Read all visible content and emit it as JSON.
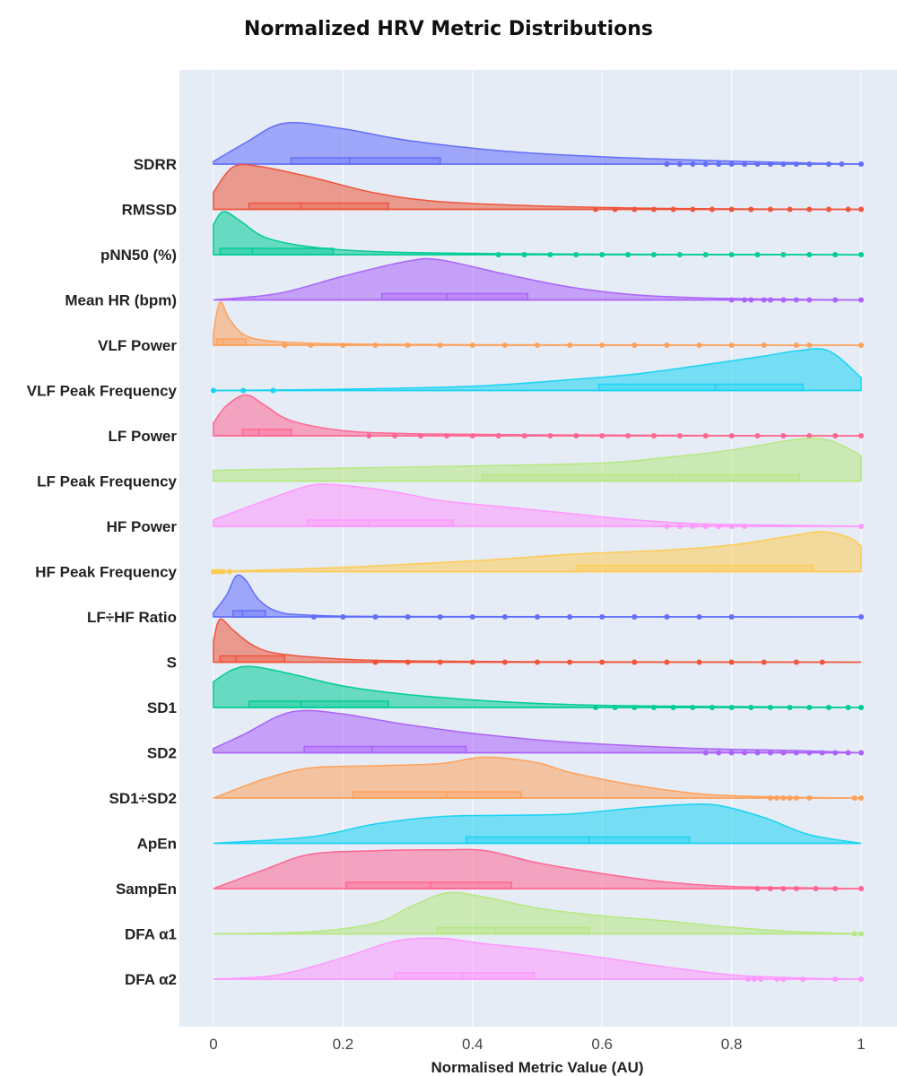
{
  "chart_data": {
    "type": "raincloud",
    "title": "Normalized HRV Metric Distributions",
    "xlabel": "Normalised Metric Value (AU)",
    "ylabel": "",
    "xlim": [
      0,
      1
    ],
    "xticks": [
      "0",
      "0.2",
      "0.4",
      "0.6",
      "0.8",
      "1"
    ],
    "grid": true,
    "background": "#E5ECF6",
    "series": [
      {
        "name": "SDRR",
        "color": "#636EFA",
        "shape": [
          [
            0,
            0.06
          ],
          [
            0.05,
            0.5
          ],
          [
            0.11,
            0.95
          ],
          [
            0.2,
            0.82
          ],
          [
            0.3,
            0.55
          ],
          [
            0.45,
            0.3
          ],
          [
            0.6,
            0.17
          ],
          [
            0.75,
            0.09
          ],
          [
            0.9,
            0.03
          ],
          [
            1,
            0.0
          ]
        ],
        "q1": 0.12,
        "median": 0.21,
        "q3": 0.35,
        "outliers": [
          0.7,
          0.72,
          0.74,
          0.76,
          0.78,
          0.8,
          0.82,
          0.84,
          0.86,
          0.88,
          0.9,
          0.92,
          0.95,
          0.97,
          1.0
        ]
      },
      {
        "name": "RMSSD",
        "color": "#EF553B",
        "shape": [
          [
            0,
            0.4
          ],
          [
            0.03,
            0.98
          ],
          [
            0.07,
            1.0
          ],
          [
            0.15,
            0.75
          ],
          [
            0.25,
            0.38
          ],
          [
            0.35,
            0.18
          ],
          [
            0.5,
            0.08
          ],
          [
            0.65,
            0.03
          ],
          [
            0.8,
            0.01
          ],
          [
            1,
            0.0
          ]
        ],
        "q1": 0.055,
        "median": 0.135,
        "q3": 0.27,
        "outliers": [
          0.59,
          0.62,
          0.65,
          0.68,
          0.71,
          0.74,
          0.77,
          0.8,
          0.83,
          0.86,
          0.89,
          0.92,
          0.95,
          0.98,
          1.0
        ]
      },
      {
        "name": "pNN50 (%)",
        "color": "#00CC96",
        "shape": [
          [
            0,
            0.7
          ],
          [
            0.015,
            1.0
          ],
          [
            0.04,
            0.8
          ],
          [
            0.08,
            0.4
          ],
          [
            0.15,
            0.18
          ],
          [
            0.25,
            0.07
          ],
          [
            0.4,
            0.03
          ],
          [
            0.6,
            0.01
          ],
          [
            1,
            0.0
          ]
        ],
        "q1": 0.01,
        "median": 0.06,
        "q3": 0.185,
        "outliers": [
          0.44,
          0.48,
          0.52,
          0.56,
          0.6,
          0.64,
          0.68,
          0.72,
          0.76,
          0.8,
          0.84,
          0.88,
          0.92,
          0.96,
          1.0
        ]
      },
      {
        "name": "Mean HR (bpm)",
        "color": "#AB63FA",
        "shape": [
          [
            0,
            0.0
          ],
          [
            0.1,
            0.15
          ],
          [
            0.2,
            0.55
          ],
          [
            0.3,
            0.9
          ],
          [
            0.35,
            0.93
          ],
          [
            0.45,
            0.6
          ],
          [
            0.55,
            0.3
          ],
          [
            0.65,
            0.12
          ],
          [
            0.75,
            0.05
          ],
          [
            0.85,
            0.02
          ],
          [
            1,
            0.0
          ]
        ],
        "q1": 0.26,
        "median": 0.36,
        "q3": 0.485,
        "outliers": [
          0.8,
          0.82,
          0.83,
          0.85,
          0.86,
          0.88,
          0.9,
          0.92,
          0.96,
          1.0
        ]
      },
      {
        "name": "VLF Power",
        "color": "#FFA15A",
        "shape": [
          [
            0,
            0.3
          ],
          [
            0.01,
            1.0
          ],
          [
            0.025,
            0.6
          ],
          [
            0.05,
            0.22
          ],
          [
            0.1,
            0.08
          ],
          [
            0.2,
            0.03
          ],
          [
            0.4,
            0.01
          ],
          [
            1,
            0.0
          ]
        ],
        "q1": 0.005,
        "median": 0.015,
        "q3": 0.05,
        "outliers": [
          0.11,
          0.15,
          0.2,
          0.25,
          0.3,
          0.35,
          0.4,
          0.45,
          0.5,
          0.55,
          0.6,
          0.65,
          0.7,
          0.75,
          0.8,
          0.85,
          0.9,
          0.92,
          1.0
        ]
      },
      {
        "name": "VLF Peak Frequency",
        "color": "#19D3F3",
        "shape": [
          [
            0,
            0.0
          ],
          [
            0.2,
            0.03
          ],
          [
            0.4,
            0.1
          ],
          [
            0.55,
            0.25
          ],
          [
            0.65,
            0.38
          ],
          [
            0.75,
            0.58
          ],
          [
            0.85,
            0.8
          ],
          [
            0.9,
            0.92
          ],
          [
            0.95,
            0.92
          ],
          [
            1,
            0.3
          ]
        ],
        "q1": 0.595,
        "median": 0.775,
        "q3": 0.91,
        "outliers": [
          0.0,
          0.046,
          0.092
        ]
      },
      {
        "name": "LF Power",
        "color": "#FF6692",
        "shape": [
          [
            0,
            0.3
          ],
          [
            0.02,
            0.7
          ],
          [
            0.05,
            0.95
          ],
          [
            0.08,
            0.7
          ],
          [
            0.12,
            0.35
          ],
          [
            0.2,
            0.12
          ],
          [
            0.3,
            0.05
          ],
          [
            0.5,
            0.02
          ],
          [
            1,
            0.0
          ]
        ],
        "q1": 0.045,
        "median": 0.07,
        "q3": 0.12,
        "outliers": [
          0.24,
          0.28,
          0.32,
          0.36,
          0.4,
          0.44,
          0.48,
          0.52,
          0.56,
          0.6,
          0.64,
          0.68,
          0.72,
          0.76,
          0.8,
          0.84,
          0.88,
          0.92,
          0.96,
          1.0
        ]
      },
      {
        "name": "LF Peak Frequency",
        "color": "#B6E880",
        "shape": [
          [
            0,
            0.25
          ],
          [
            0.2,
            0.3
          ],
          [
            0.4,
            0.35
          ],
          [
            0.6,
            0.42
          ],
          [
            0.7,
            0.55
          ],
          [
            0.8,
            0.72
          ],
          [
            0.9,
            0.97
          ],
          [
            0.95,
            0.95
          ],
          [
            1,
            0.6
          ]
        ],
        "q1": 0.415,
        "median": 0.72,
        "q3": 0.905,
        "outliers": []
      },
      {
        "name": "HF Power",
        "color": "#FF97FF",
        "shape": [
          [
            0,
            0.15
          ],
          [
            0.08,
            0.6
          ],
          [
            0.15,
            0.95
          ],
          [
            0.2,
            0.95
          ],
          [
            0.28,
            0.8
          ],
          [
            0.35,
            0.6
          ],
          [
            0.45,
            0.45
          ],
          [
            0.55,
            0.3
          ],
          [
            0.65,
            0.15
          ],
          [
            0.75,
            0.06
          ],
          [
            0.9,
            0.02
          ],
          [
            1,
            0.0
          ]
        ],
        "q1": 0.145,
        "median": 0.24,
        "q3": 0.37,
        "outliers": [
          0.7,
          0.72,
          0.74,
          0.76,
          0.78,
          0.8,
          0.82,
          1.0
        ]
      },
      {
        "name": "HF Peak Frequency",
        "color": "#FECB52",
        "shape": [
          [
            0,
            0.0
          ],
          [
            0.2,
            0.1
          ],
          [
            0.4,
            0.25
          ],
          [
            0.55,
            0.4
          ],
          [
            0.7,
            0.5
          ],
          [
            0.8,
            0.62
          ],
          [
            0.9,
            0.85
          ],
          [
            0.94,
            0.93
          ],
          [
            0.98,
            0.8
          ],
          [
            1,
            0.6
          ]
        ],
        "q1": 0.56,
        "median": 0.78,
        "q3": 0.925,
        "outliers": [
          0.0,
          0.005,
          0.01,
          0.015,
          0.025
        ]
      },
      {
        "name": "LF÷HF Ratio",
        "color": "#636EFA",
        "shape": [
          [
            0,
            0.1
          ],
          [
            0.02,
            0.5
          ],
          [
            0.035,
            0.95
          ],
          [
            0.05,
            0.85
          ],
          [
            0.07,
            0.4
          ],
          [
            0.1,
            0.12
          ],
          [
            0.15,
            0.04
          ],
          [
            0.3,
            0.01
          ],
          [
            1,
            0.0
          ]
        ],
        "q1": 0.03,
        "median": 0.045,
        "q3": 0.08,
        "outliers": [
          0.155,
          0.2,
          0.25,
          0.3,
          0.35,
          0.4,
          0.45,
          0.5,
          0.55,
          0.6,
          0.65,
          0.7,
          0.75,
          0.8,
          1.0
        ]
      },
      {
        "name": "S",
        "color": "#EF553B",
        "shape": [
          [
            0,
            0.5
          ],
          [
            0.01,
            1.0
          ],
          [
            0.03,
            0.75
          ],
          [
            0.06,
            0.4
          ],
          [
            0.1,
            0.2
          ],
          [
            0.2,
            0.07
          ],
          [
            0.3,
            0.03
          ],
          [
            0.5,
            0.01
          ],
          [
            1,
            0.0
          ]
        ],
        "q1": 0.01,
        "median": 0.035,
        "q3": 0.11,
        "outliers": [
          0.25,
          0.3,
          0.35,
          0.4,
          0.45,
          0.5,
          0.55,
          0.6,
          0.65,
          0.7,
          0.75,
          0.8,
          0.85,
          0.9,
          0.94
        ]
      },
      {
        "name": "SD1",
        "color": "#00CC96",
        "shape": [
          [
            0,
            0.6
          ],
          [
            0.03,
            0.88
          ],
          [
            0.06,
            0.95
          ],
          [
            0.12,
            0.78
          ],
          [
            0.2,
            0.5
          ],
          [
            0.3,
            0.3
          ],
          [
            0.45,
            0.13
          ],
          [
            0.6,
            0.05
          ],
          [
            0.8,
            0.02
          ],
          [
            1,
            0.0
          ]
        ],
        "q1": 0.055,
        "median": 0.135,
        "q3": 0.27,
        "outliers": [
          0.59,
          0.62,
          0.65,
          0.68,
          0.71,
          0.74,
          0.77,
          0.8,
          0.83,
          0.86,
          0.89,
          0.92,
          0.95,
          0.98,
          1.0
        ]
      },
      {
        "name": "SD2",
        "color": "#AB63FA",
        "shape": [
          [
            0,
            0.1
          ],
          [
            0.05,
            0.45
          ],
          [
            0.1,
            0.85
          ],
          [
            0.14,
            0.98
          ],
          [
            0.2,
            0.9
          ],
          [
            0.3,
            0.65
          ],
          [
            0.4,
            0.45
          ],
          [
            0.5,
            0.3
          ],
          [
            0.6,
            0.2
          ],
          [
            0.75,
            0.1
          ],
          [
            0.9,
            0.05
          ],
          [
            1,
            0.0
          ]
        ],
        "q1": 0.14,
        "median": 0.245,
        "q3": 0.39,
        "outliers": [
          0.76,
          0.78,
          0.8,
          0.82,
          0.84,
          0.86,
          0.88,
          0.9,
          0.92,
          0.94,
          0.96,
          0.98,
          1.0
        ]
      },
      {
        "name": "SD1÷SD2",
        "color": "#FFA15A",
        "shape": [
          [
            0,
            0.0
          ],
          [
            0.08,
            0.45
          ],
          [
            0.15,
            0.7
          ],
          [
            0.25,
            0.75
          ],
          [
            0.35,
            0.8
          ],
          [
            0.42,
            0.95
          ],
          [
            0.5,
            0.82
          ],
          [
            0.55,
            0.6
          ],
          [
            0.65,
            0.3
          ],
          [
            0.75,
            0.1
          ],
          [
            0.85,
            0.03
          ],
          [
            1,
            0.0
          ]
        ],
        "q1": 0.215,
        "median": 0.36,
        "q3": 0.475,
        "outliers": [
          0.86,
          0.87,
          0.88,
          0.89,
          0.9,
          0.92,
          0.99,
          1.0
        ]
      },
      {
        "name": "ApEn",
        "color": "#19D3F3",
        "shape": [
          [
            0,
            0.0
          ],
          [
            0.15,
            0.15
          ],
          [
            0.25,
            0.45
          ],
          [
            0.35,
            0.62
          ],
          [
            0.45,
            0.65
          ],
          [
            0.55,
            0.68
          ],
          [
            0.65,
            0.82
          ],
          [
            0.73,
            0.9
          ],
          [
            0.78,
            0.88
          ],
          [
            0.85,
            0.6
          ],
          [
            0.92,
            0.2
          ],
          [
            1,
            0.0
          ]
        ],
        "q1": 0.39,
        "median": 0.58,
        "q3": 0.735,
        "outliers": []
      },
      {
        "name": "SampEn",
        "color": "#FF6692",
        "shape": [
          [
            0,
            0.0
          ],
          [
            0.08,
            0.45
          ],
          [
            0.15,
            0.8
          ],
          [
            0.25,
            0.88
          ],
          [
            0.35,
            0.9
          ],
          [
            0.42,
            0.88
          ],
          [
            0.5,
            0.6
          ],
          [
            0.6,
            0.35
          ],
          [
            0.7,
            0.15
          ],
          [
            0.8,
            0.05
          ],
          [
            0.9,
            0.02
          ],
          [
            1,
            0.0
          ]
        ],
        "q1": 0.205,
        "median": 0.335,
        "q3": 0.46,
        "outliers": [
          0.84,
          0.86,
          0.88,
          0.9,
          0.93,
          0.96,
          1.0
        ]
      },
      {
        "name": "DFA α1",
        "color": "#B6E880",
        "shape": [
          [
            0,
            0.0
          ],
          [
            0.15,
            0.05
          ],
          [
            0.25,
            0.25
          ],
          [
            0.3,
            0.6
          ],
          [
            0.36,
            0.95
          ],
          [
            0.42,
            0.85
          ],
          [
            0.5,
            0.6
          ],
          [
            0.6,
            0.42
          ],
          [
            0.7,
            0.3
          ],
          [
            0.8,
            0.15
          ],
          [
            0.9,
            0.05
          ],
          [
            1,
            0.0
          ]
        ],
        "q1": 0.345,
        "median": 0.435,
        "q3": 0.58,
        "outliers": [
          0.99,
          1.0
        ]
      },
      {
        "name": "DFA α2",
        "color": "#FF97FF",
        "shape": [
          [
            0,
            0.0
          ],
          [
            0.1,
            0.1
          ],
          [
            0.2,
            0.5
          ],
          [
            0.28,
            0.88
          ],
          [
            0.35,
            0.95
          ],
          [
            0.42,
            0.82
          ],
          [
            0.5,
            0.7
          ],
          [
            0.6,
            0.5
          ],
          [
            0.7,
            0.28
          ],
          [
            0.8,
            0.1
          ],
          [
            0.9,
            0.03
          ],
          [
            1,
            0.0
          ]
        ],
        "q1": 0.28,
        "median": 0.385,
        "q3": 0.495,
        "outliers": [
          0.825,
          0.835,
          0.845,
          0.87,
          0.88,
          0.91,
          0.96,
          1.0
        ]
      }
    ]
  }
}
